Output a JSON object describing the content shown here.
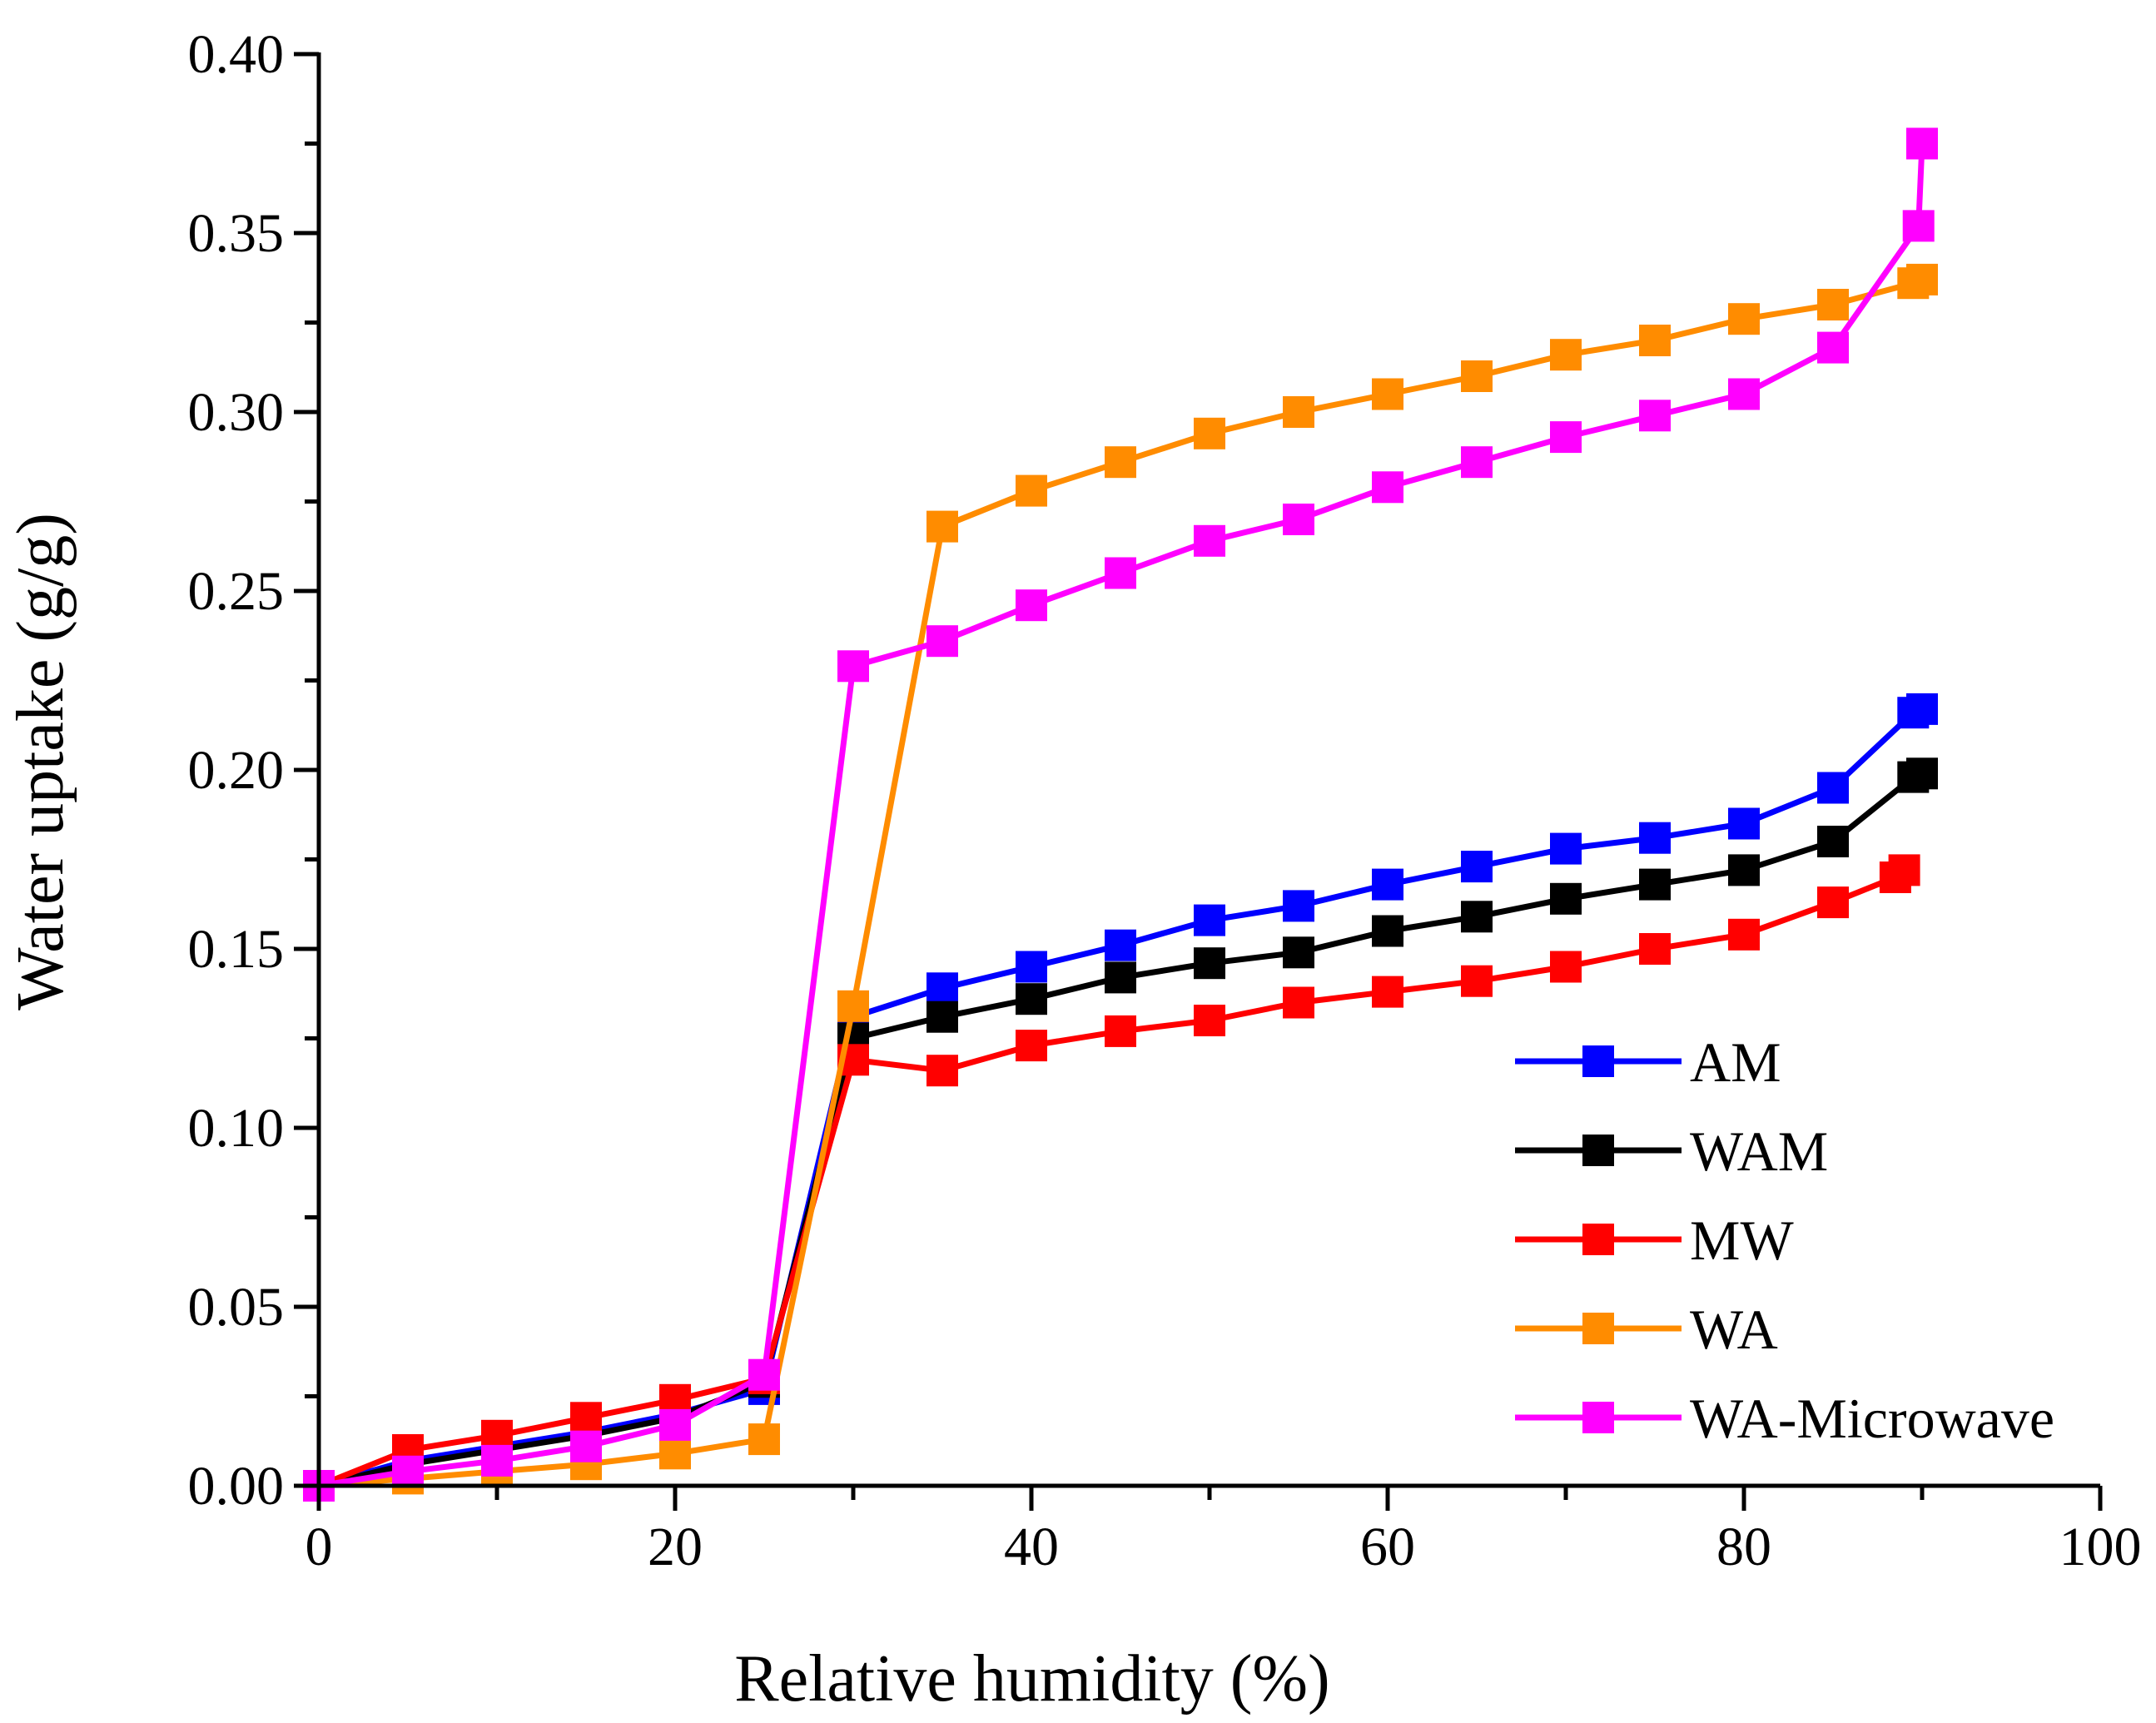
{
  "chart_data": {
    "type": "line",
    "title": "",
    "xlabel": "Relative humidity (%)",
    "ylabel": "Water uptake (g/g)",
    "xlim": [
      0,
      100
    ],
    "ylim": [
      0,
      0.4
    ],
    "x_ticks": [
      "0",
      "20",
      "40",
      "60",
      "80",
      "100"
    ],
    "x_tick_values": [
      0,
      20,
      40,
      60,
      80,
      100
    ],
    "y_ticks": [
      "0.00",
      "0.05",
      "0.10",
      "0.15",
      "0.20",
      "0.25",
      "0.30",
      "0.35",
      "0.40"
    ],
    "y_tick_values": [
      0,
      0.05,
      0.1,
      0.15,
      0.2,
      0.25,
      0.3,
      0.35,
      0.4
    ],
    "grid": false,
    "legend_position": "bottom-right",
    "series": [
      {
        "name": "AM",
        "color": "#0000ff",
        "x": [
          0,
          5,
          10,
          15,
          20,
          25,
          30,
          35,
          40,
          45,
          50,
          55,
          60,
          65,
          70,
          75,
          80,
          85,
          89.5,
          90
        ],
        "y": [
          0,
          0.007,
          0.011,
          0.015,
          0.02,
          0.027,
          0.131,
          0.139,
          0.145,
          0.151,
          0.158,
          0.162,
          0.168,
          0.173,
          0.178,
          0.181,
          0.185,
          0.195,
          0.216,
          0.217
        ]
      },
      {
        "name": "WAM",
        "color": "#000000",
        "x": [
          0,
          5,
          10,
          15,
          20,
          25,
          30,
          35,
          40,
          45,
          50,
          55,
          60,
          65,
          70,
          75,
          80,
          85,
          89.5,
          90
        ],
        "y": [
          0,
          0.006,
          0.01,
          0.014,
          0.019,
          0.029,
          0.125,
          0.131,
          0.136,
          0.142,
          0.146,
          0.149,
          0.155,
          0.159,
          0.164,
          0.168,
          0.172,
          0.18,
          0.198,
          0.199
        ]
      },
      {
        "name": "MW",
        "color": "#ff0000",
        "x": [
          0,
          5,
          10,
          15,
          20,
          25,
          30,
          35,
          40,
          45,
          50,
          55,
          60,
          65,
          70,
          75,
          80,
          85,
          88.5,
          89
        ],
        "y": [
          0,
          0.01,
          0.014,
          0.019,
          0.024,
          0.03,
          0.119,
          0.116,
          0.123,
          0.127,
          0.13,
          0.135,
          0.138,
          0.141,
          0.145,
          0.15,
          0.154,
          0.163,
          0.17,
          0.172
        ]
      },
      {
        "name": "WA",
        "color": "#ff8c00",
        "x": [
          0,
          5,
          10,
          15,
          20,
          25,
          30,
          35,
          40,
          45,
          50,
          55,
          60,
          65,
          70,
          75,
          80,
          85,
          89.5,
          90
        ],
        "y": [
          0,
          0.002,
          0.004,
          0.006,
          0.009,
          0.013,
          0.134,
          0.268,
          0.278,
          0.286,
          0.294,
          0.3,
          0.305,
          0.31,
          0.316,
          0.32,
          0.326,
          0.33,
          0.336,
          0.337
        ]
      },
      {
        "name": "WA-Microwave",
        "color": "#ff00ff",
        "x": [
          0,
          5,
          10,
          15,
          20,
          25,
          30,
          35,
          40,
          45,
          50,
          55,
          60,
          65,
          70,
          75,
          80,
          85,
          89.8,
          90
        ],
        "y": [
          0,
          0.004,
          0.007,
          0.011,
          0.017,
          0.031,
          0.229,
          0.236,
          0.246,
          0.255,
          0.264,
          0.27,
          0.279,
          0.286,
          0.293,
          0.299,
          0.305,
          0.318,
          0.352,
          0.375
        ]
      }
    ]
  }
}
